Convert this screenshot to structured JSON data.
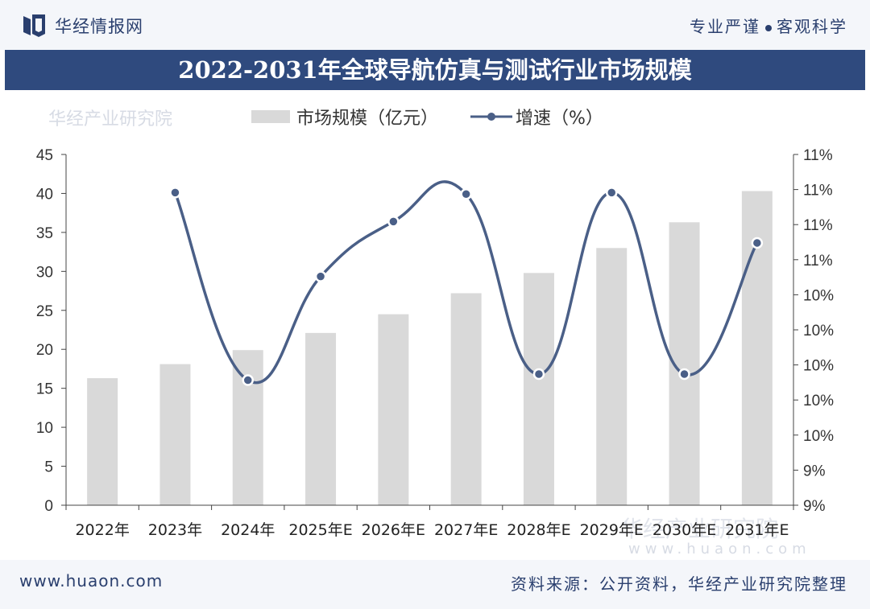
{
  "header": {
    "brand": "华经情报网",
    "slogan_left": "专业严谨",
    "slogan_right": "客观科学",
    "title": "2022-2031年全球导航仿真与测试行业市场规模"
  },
  "legend": {
    "bar_label": "市场规模（亿元）",
    "line_label": "增速（%）"
  },
  "footer": {
    "url": "www.huaon.com",
    "source": "资料来源：公开资料，华经产业研究院整理",
    "watermark_name": "华经产业研究院",
    "watermark_url": "www.huaon.com"
  },
  "colors": {
    "bar": "#d9d9d9",
    "line": "#4a5f87",
    "title_bg": "#2f4a7e"
  },
  "chart_data": {
    "type": "bar",
    "categories": [
      "2022年",
      "2023年",
      "2024年",
      "2025年E",
      "2026年E",
      "2027年E",
      "2028年E",
      "2029年E",
      "2030年E",
      "2031年E"
    ],
    "series": [
      {
        "name": "市场规模（亿元）",
        "type": "bar",
        "axis": "left",
        "values": [
          16.3,
          18.1,
          19.9,
          22.1,
          24.5,
          27.2,
          29.8,
          33.0,
          36.3,
          40.3
        ]
      },
      {
        "name": "增速（%）",
        "type": "line",
        "axis": "right",
        "smooth": true,
        "values": [
          null,
          11.05,
          9.82,
          10.5,
          10.86,
          11.04,
          9.86,
          11.05,
          9.86,
          10.72
        ]
      }
    ],
    "ylim": [
      0,
      45
    ],
    "yticks": [
      0,
      5,
      10,
      15,
      20,
      25,
      30,
      35,
      40,
      45
    ],
    "y2lim": [
      9.0,
      11.3
    ],
    "y2tick_labels": [
      "9%",
      "9%",
      "10%",
      "10%",
      "10%",
      "10%",
      "10%",
      "11%",
      "11%",
      "11%",
      "11%"
    ],
    "xlabel": "",
    "ylabel": "",
    "grid": false,
    "legend_position": "top"
  }
}
